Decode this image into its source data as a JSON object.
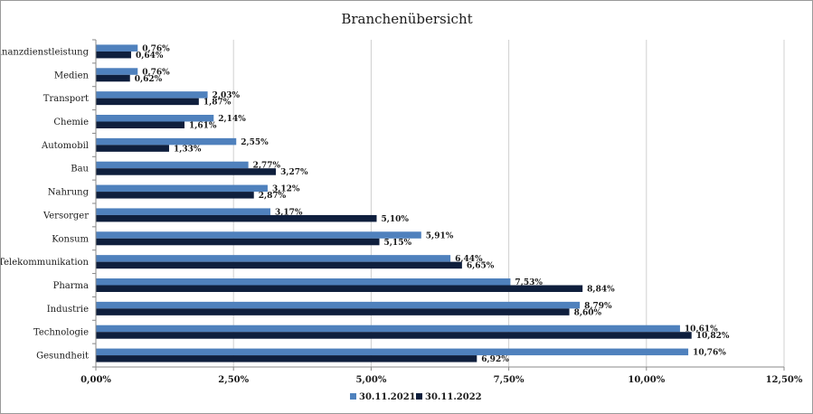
{
  "chart_data": {
    "type": "bar",
    "orientation": "horizontal",
    "title": "Branchenübersicht",
    "categories": [
      "Finanzdienstleistung",
      "Medien",
      "Transport",
      "Chemie",
      "Automobil",
      "Bau",
      "Nahrung",
      "Versorger",
      "Konsum",
      "Telekommunikation",
      "Pharma",
      "Industrie",
      "Technologie",
      "Gesundheit"
    ],
    "series": [
      {
        "name": "30.11.2021",
        "color": "#4F81BD",
        "values": [
          0.76,
          0.76,
          2.03,
          2.14,
          2.55,
          2.77,
          3.12,
          3.17,
          5.91,
          6.44,
          7.53,
          8.79,
          10.61,
          10.76
        ],
        "labels": [
          "0,76%",
          "0,76%",
          "2,03%",
          "2,14%",
          "2,55%",
          "2,77%",
          "3,12%",
          "3,17%",
          "5,91%",
          "6,44%",
          "7,53%",
          "8,79%",
          "10,61%",
          "10,76%"
        ]
      },
      {
        "name": "30.11.2022",
        "color": "#0F1F3D",
        "values": [
          0.64,
          0.62,
          1.87,
          1.61,
          1.33,
          3.27,
          2.87,
          5.1,
          5.15,
          6.65,
          8.84,
          8.6,
          10.82,
          6.92
        ],
        "labels": [
          "0,64%",
          "0,62%",
          "1,87%",
          "1,61%",
          "1,33%",
          "3,27%",
          "2,87%",
          "5,10%",
          "5,15%",
          "6,65%",
          "8,84%",
          "8,60%",
          "10,82%",
          "6,92%"
        ]
      }
    ],
    "xlim": [
      0,
      12.5
    ],
    "xticks": [
      0,
      2.5,
      5,
      7.5,
      10,
      12.5
    ],
    "xtick_labels": [
      "0,00%",
      "2,50%",
      "5,00%",
      "7,50%",
      "10,00%",
      "12,50%"
    ],
    "grid": "vertical",
    "legend_position": "bottom"
  }
}
